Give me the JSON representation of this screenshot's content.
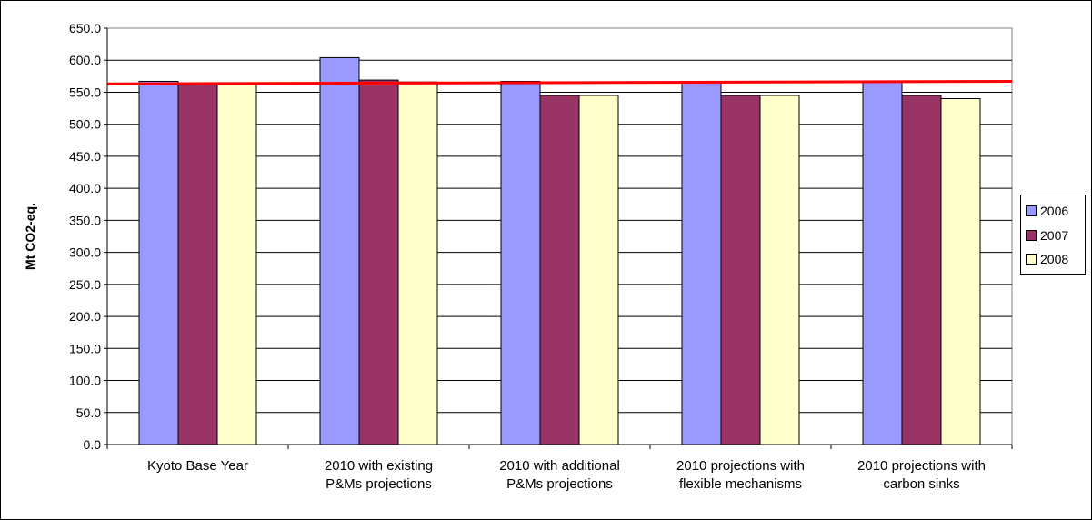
{
  "chart_data": {
    "type": "bar",
    "title": "",
    "xlabel": "",
    "ylabel": "Mt CO2-eq.",
    "ylim": [
      0,
      650
    ],
    "ytick_step": 50,
    "ytick_labels": [
      "0.0",
      "50.0",
      "100.0",
      "150.0",
      "200.0",
      "250.0",
      "300.0",
      "350.0",
      "400.0",
      "450.0",
      "500.0",
      "550.0",
      "600.0",
      "650.0"
    ],
    "categories": [
      [
        "Kyoto Base Year"
      ],
      [
        "2010 with existing",
        "P&Ms projections"
      ],
      [
        "2010 with additional",
        "P&Ms projections"
      ],
      [
        "2010 projections with",
        "flexible mechanisms"
      ],
      [
        "2010 projections with",
        "carbon sinks"
      ]
    ],
    "series": [
      {
        "name": "2006",
        "color": "#9999ff",
        "values": [
          567,
          604,
          567,
          567,
          567
        ]
      },
      {
        "name": "2007",
        "color": "#993366",
        "values": [
          564,
          569,
          545,
          545,
          545
        ]
      },
      {
        "name": "2008",
        "color": "#ffffcc",
        "values": [
          563,
          566,
          545,
          545,
          540
        ]
      }
    ],
    "reference_line": {
      "color": "#ff0000",
      "y_start": 563,
      "y_end": 567
    },
    "grid": "horizontal",
    "legend_position": "right"
  }
}
